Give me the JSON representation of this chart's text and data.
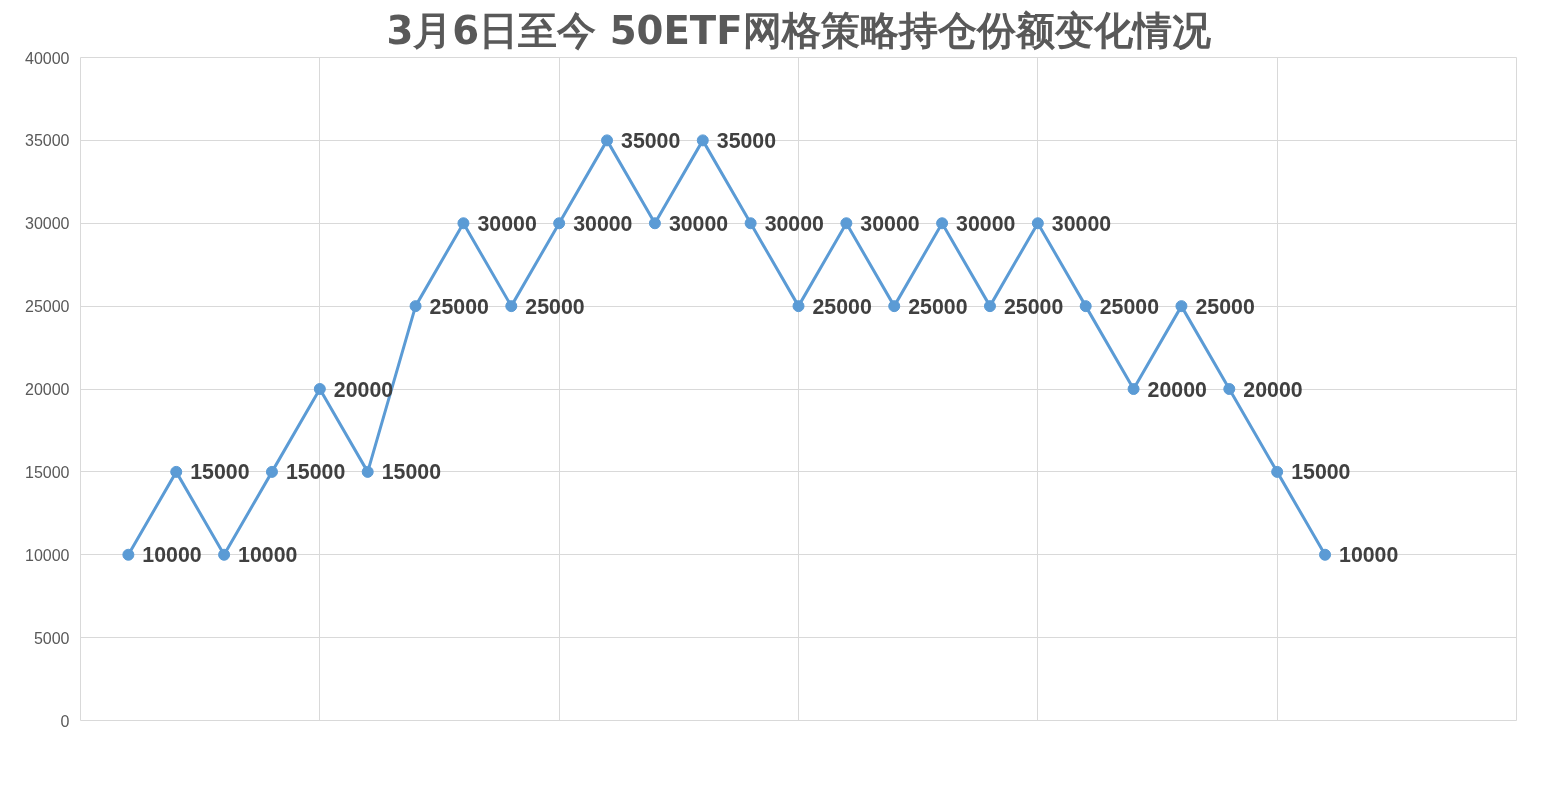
{
  "chart_data": {
    "type": "line",
    "title": "3月6日至今 50ETF网格策略持仓份额变化情况",
    "categories": [
      null,
      null,
      null,
      null,
      null,
      null,
      null,
      null,
      null,
      null,
      null,
      null,
      null,
      null,
      null,
      null,
      null,
      null,
      null,
      null,
      null,
      null,
      null,
      null,
      null,
      null
    ],
    "series": [
      {
        "color": "#5b9bd5",
        "values": [
          10000,
          15000,
          10000,
          15000,
          20000,
          15000,
          25000,
          30000,
          25000,
          30000,
          35000,
          30000,
          35000,
          30000,
          25000,
          30000,
          25000,
          30000,
          25000,
          30000,
          25000,
          20000,
          25000,
          20000,
          15000,
          10000
        ]
      }
    ],
    "data_labels": true,
    "ylim": [
      0,
      40000
    ],
    "yticks": [
      0,
      5000,
      10000,
      15000,
      20000,
      25000,
      30000,
      35000,
      40000
    ],
    "tick_labels": "y",
    "grid": true,
    "marker": "circle",
    "line_style": "solid"
  }
}
